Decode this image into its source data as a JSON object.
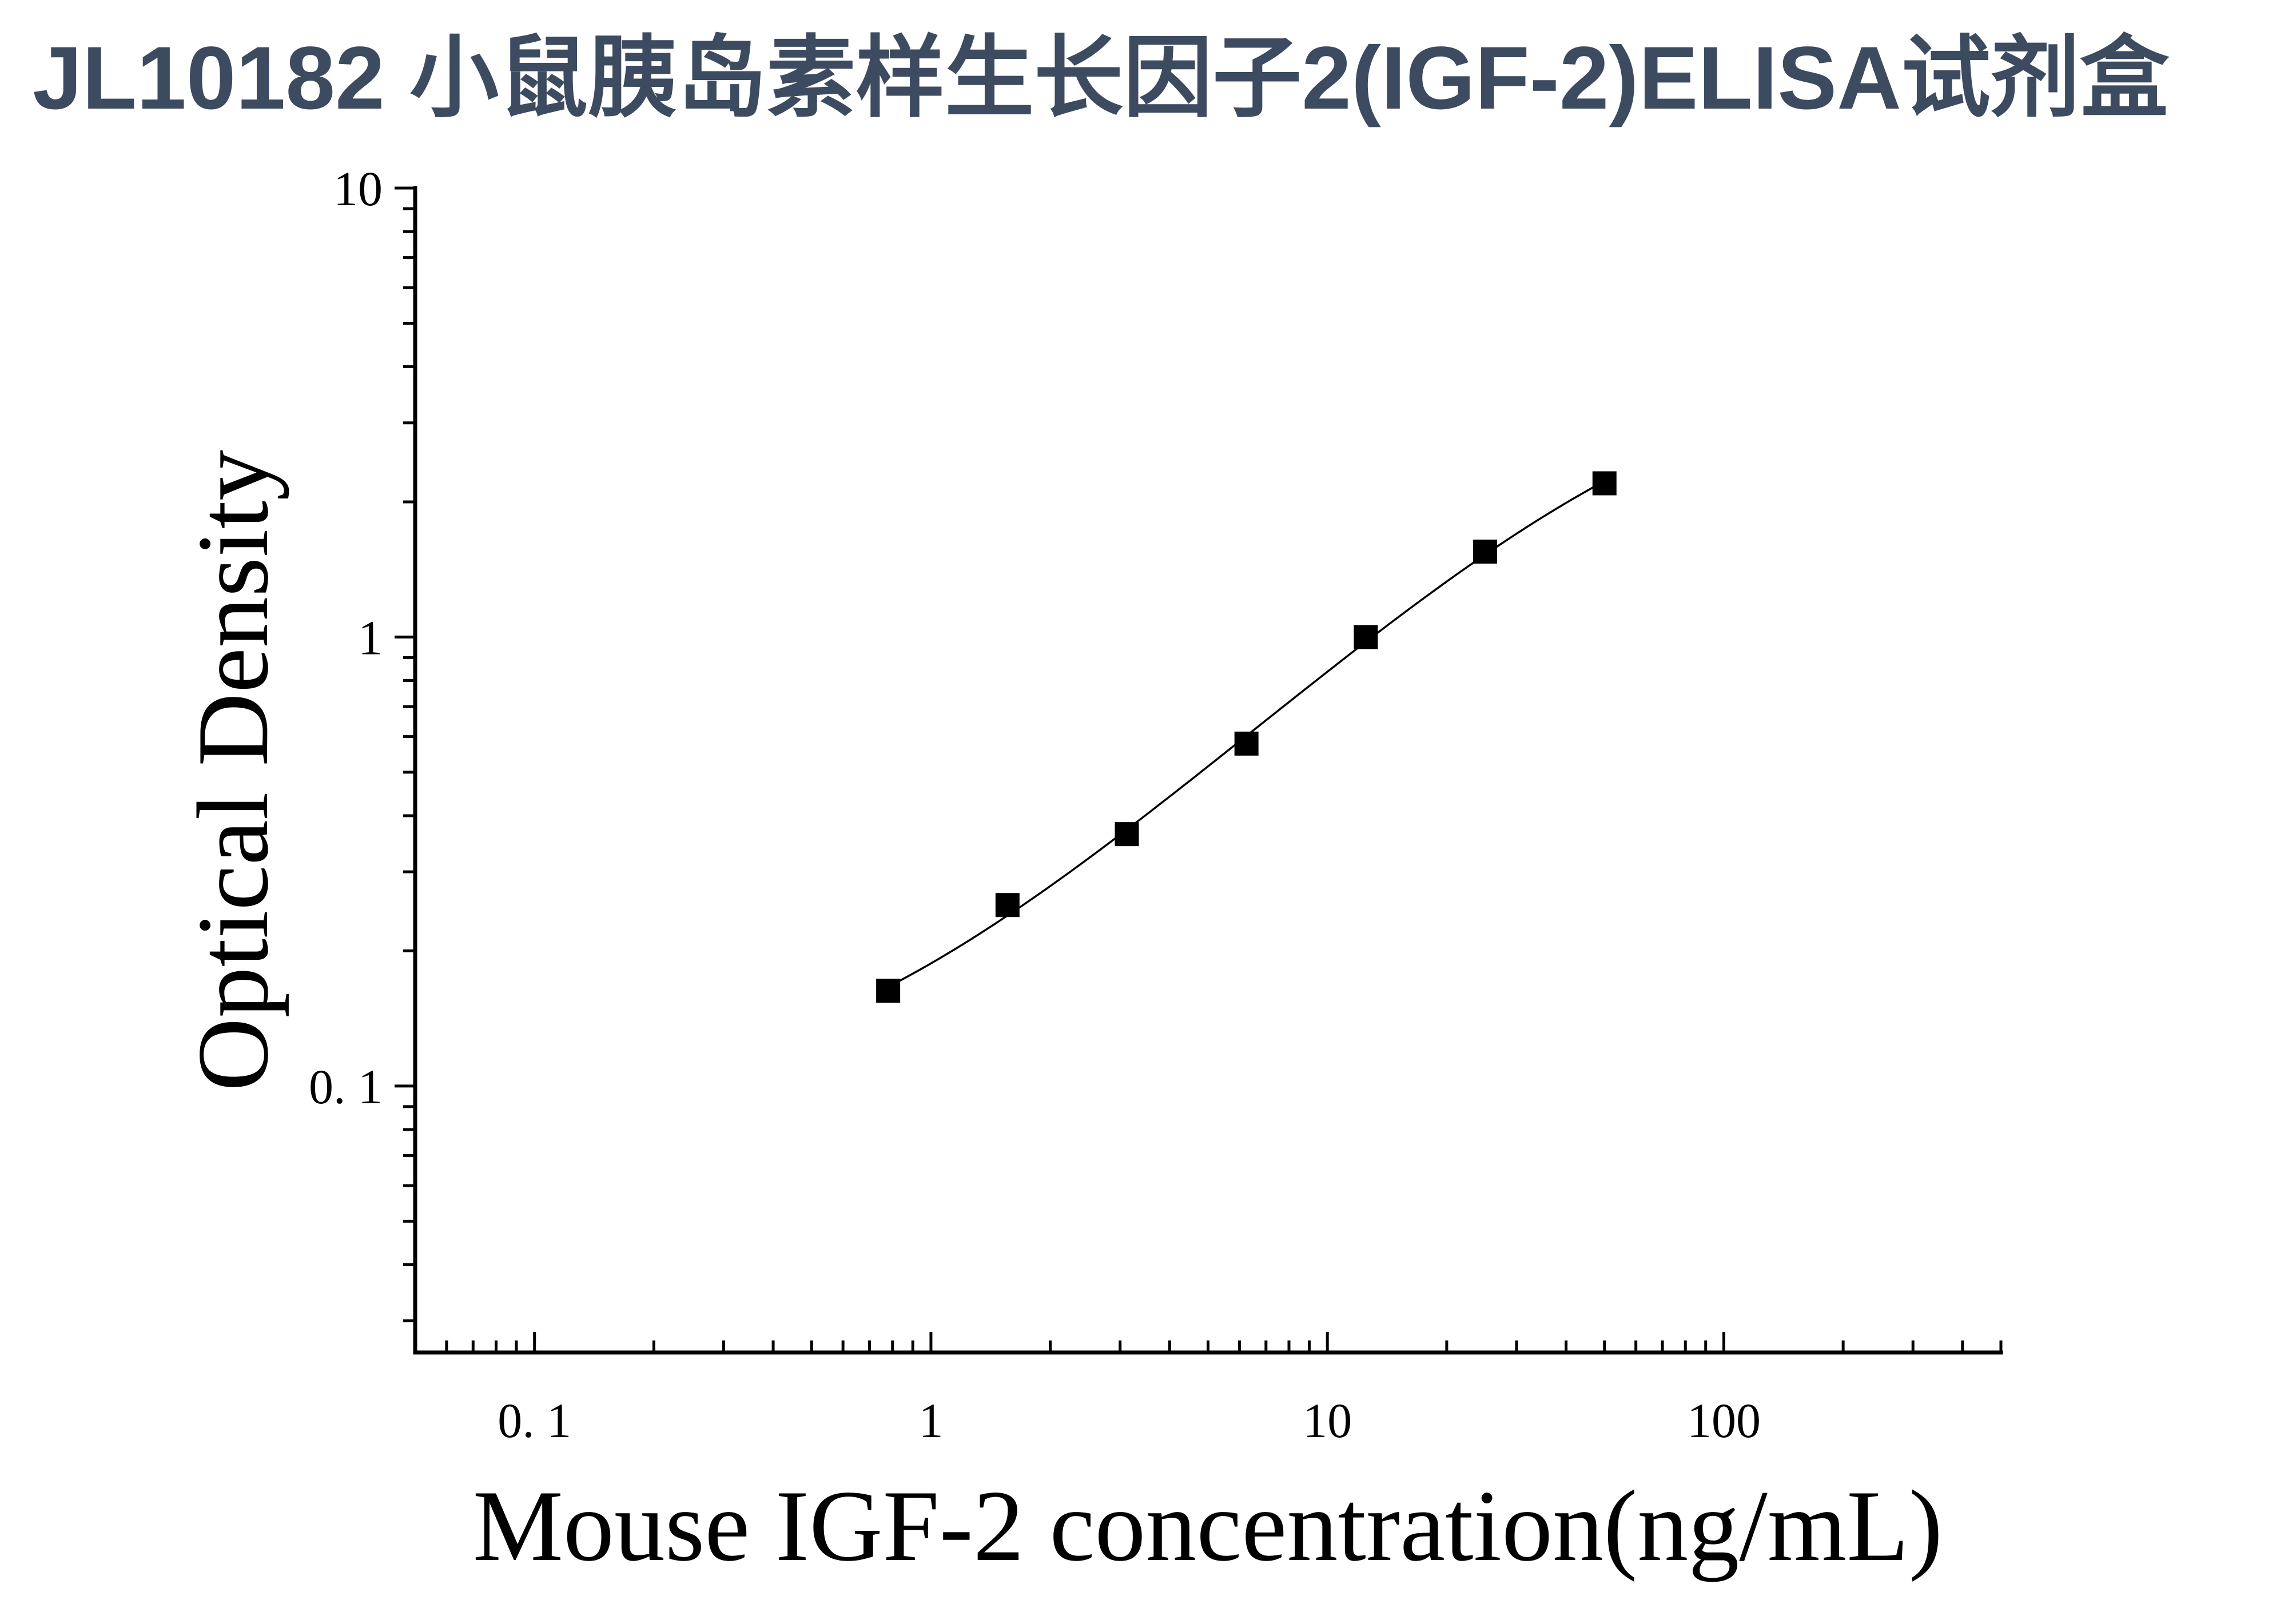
{
  "chart_data": {
    "type": "scatter",
    "title": "JL10182 小鼠胰岛素样生长因子2(IGF-2)ELISA试剂盒",
    "xlabel": "Mouse IGF-2 concentration(ng/mL)",
    "ylabel": "Optical Density",
    "xscale": "log",
    "yscale": "log",
    "xlim": [
      0.05,
      500
    ],
    "ylim": [
      0.0255,
      10
    ],
    "x_ticks": [
      {
        "value": 0.1,
        "label": "0. 1"
      },
      {
        "value": 1,
        "label": "1"
      },
      {
        "value": 10,
        "label": "10"
      },
      {
        "value": 100,
        "label": "100"
      }
    ],
    "y_ticks": [
      {
        "value": 0.1,
        "label": "0. 1"
      },
      {
        "value": 1,
        "label": "1"
      },
      {
        "value": 10,
        "label": "10"
      }
    ],
    "minor_ticks": true,
    "grid": false,
    "legend": false,
    "series": [
      {
        "marker": "square",
        "fit_curve": true,
        "color": "#000000",
        "x": [
          0.78,
          1.56,
          3.12,
          6.25,
          12.5,
          25,
          50
        ],
        "y": [
          0.163,
          0.253,
          0.364,
          0.579,
          1.0,
          1.55,
          2.2
        ]
      }
    ]
  },
  "colors": {
    "title": "#3d4b60",
    "axes": "#000000"
  }
}
